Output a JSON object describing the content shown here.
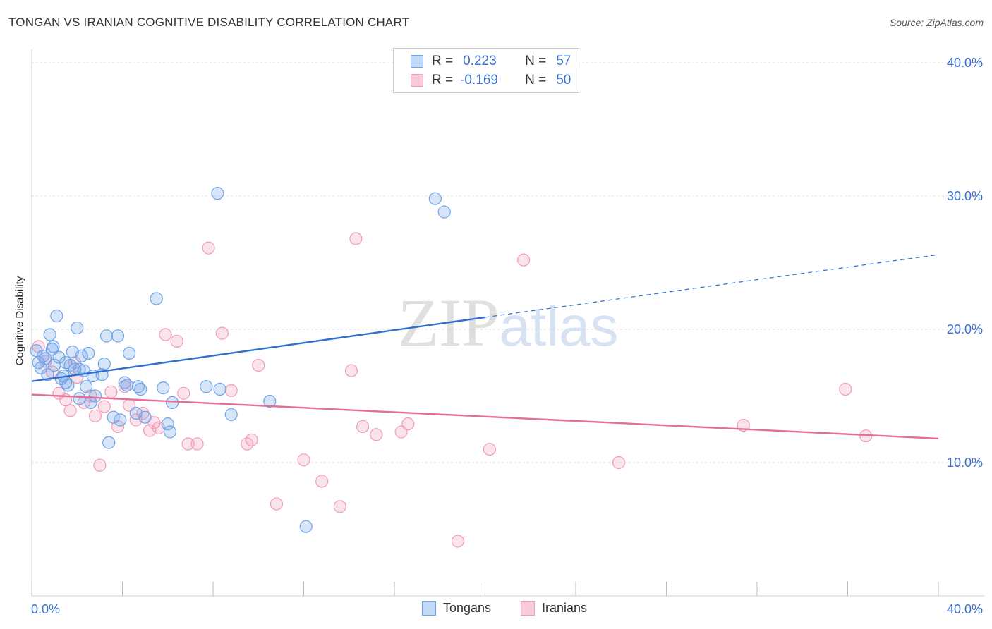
{
  "title": "TONGAN VS IRANIAN COGNITIVE DISABILITY CORRELATION CHART",
  "source": "Source: ZipAtlas.com",
  "watermark": "ZIPatlas",
  "legend_top": {
    "rows": [
      {
        "r_label": "R =",
        "r_value": "0.223",
        "n_label": "N =",
        "n_value": "57",
        "color": "#6fa3e8"
      },
      {
        "r_label": "R =",
        "r_value": "-0.169",
        "n_label": "N =",
        "n_value": "50",
        "color": "#f29bb8"
      }
    ]
  },
  "legend_bottom": [
    {
      "label": "Tongans",
      "color": "#6fa3e8"
    },
    {
      "label": "Iranians",
      "color": "#f29bb8"
    }
  ],
  "chart_data": {
    "type": "scatter",
    "title": "TONGAN VS IRANIAN COGNITIVE DISABILITY CORRELATION CHART",
    "xlabel": "",
    "ylabel": "Cognitive Disability",
    "xlim": [
      0,
      40
    ],
    "ylim": [
      0,
      41
    ],
    "x_tick_labels": [
      "0.0%",
      "40.0%"
    ],
    "y_ticks": [
      10,
      20,
      30,
      40
    ],
    "y_tick_labels": [
      "10.0%",
      "20.0%",
      "30.0%",
      "40.0%"
    ],
    "grid": true,
    "series": [
      {
        "name": "Tongans",
        "color": "#6fa3e8",
        "line_color": "#2f6fd0",
        "trend": {
          "x_start": 0,
          "y_start": 16.1,
          "x_solid_end": 20,
          "y_solid_end": 20.9,
          "x_end": 40,
          "y_end": 25.6
        },
        "points": [
          [
            0.2,
            18.4
          ],
          [
            0.3,
            17.5
          ],
          [
            0.4,
            17.1
          ],
          [
            0.5,
            18.0
          ],
          [
            0.6,
            17.8
          ],
          [
            0.7,
            16.6
          ],
          [
            0.8,
            19.6
          ],
          [
            0.9,
            18.5
          ],
          [
            0.95,
            18.7
          ],
          [
            1.0,
            17.3
          ],
          [
            1.1,
            21.0
          ],
          [
            1.2,
            17.9
          ],
          [
            1.3,
            16.3
          ],
          [
            1.4,
            16.5
          ],
          [
            1.5,
            17.5
          ],
          [
            1.6,
            15.8
          ],
          [
            1.7,
            17.3
          ],
          [
            1.8,
            18.3
          ],
          [
            1.9,
            17.0
          ],
          [
            2.0,
            20.1
          ],
          [
            2.1,
            14.8
          ],
          [
            2.2,
            18.0
          ],
          [
            2.3,
            16.9
          ],
          [
            2.4,
            15.7
          ],
          [
            2.5,
            18.2
          ],
          [
            2.6,
            14.5
          ],
          [
            2.7,
            16.5
          ],
          [
            2.8,
            15.0
          ],
          [
            3.1,
            16.6
          ],
          [
            3.2,
            17.4
          ],
          [
            3.3,
            19.5
          ],
          [
            3.4,
            11.5
          ],
          [
            3.6,
            13.4
          ],
          [
            3.8,
            19.5
          ],
          [
            3.9,
            13.2
          ],
          [
            4.1,
            16.0
          ],
          [
            4.2,
            15.8
          ],
          [
            4.3,
            18.2
          ],
          [
            4.6,
            13.7
          ],
          [
            4.7,
            15.7
          ],
          [
            5.0,
            13.4
          ],
          [
            5.5,
            22.3
          ],
          [
            5.8,
            15.6
          ],
          [
            6.0,
            12.9
          ],
          [
            6.1,
            12.3
          ],
          [
            6.2,
            14.5
          ],
          [
            7.7,
            15.7
          ],
          [
            8.2,
            30.2
          ],
          [
            8.3,
            15.5
          ],
          [
            8.8,
            13.6
          ],
          [
            10.5,
            14.6
          ],
          [
            12.1,
            5.2
          ],
          [
            17.8,
            29.8
          ],
          [
            18.2,
            28.8
          ],
          [
            1.5,
            16.0
          ],
          [
            2.1,
            17.0
          ],
          [
            4.8,
            15.5
          ]
        ]
      },
      {
        "name": "Iranians",
        "color": "#f29bb8",
        "line_color": "#e46e98",
        "trend": {
          "x_start": 0,
          "y_start": 15.1,
          "x_end": 40,
          "y_end": 11.8
        },
        "points": [
          [
            0.3,
            18.7
          ],
          [
            0.6,
            17.6
          ],
          [
            0.9,
            16.8
          ],
          [
            1.2,
            15.2
          ],
          [
            1.5,
            14.7
          ],
          [
            1.7,
            13.9
          ],
          [
            1.9,
            17.5
          ],
          [
            2.0,
            16.4
          ],
          [
            2.3,
            14.5
          ],
          [
            2.6,
            15.0
          ],
          [
            2.8,
            13.5
          ],
          [
            3.0,
            9.8
          ],
          [
            3.2,
            14.2
          ],
          [
            3.5,
            15.3
          ],
          [
            3.8,
            12.7
          ],
          [
            4.1,
            15.7
          ],
          [
            4.3,
            14.3
          ],
          [
            4.6,
            13.2
          ],
          [
            4.9,
            13.7
          ],
          [
            5.2,
            12.4
          ],
          [
            5.4,
            13.0
          ],
          [
            5.6,
            12.6
          ],
          [
            5.9,
            19.6
          ],
          [
            6.4,
            19.1
          ],
          [
            6.7,
            15.2
          ],
          [
            6.9,
            11.4
          ],
          [
            7.3,
            11.4
          ],
          [
            7.8,
            26.1
          ],
          [
            8.4,
            19.7
          ],
          [
            8.8,
            15.4
          ],
          [
            9.5,
            11.4
          ],
          [
            9.7,
            11.7
          ],
          [
            10.0,
            17.3
          ],
          [
            10.8,
            6.9
          ],
          [
            12.0,
            10.2
          ],
          [
            12.8,
            8.6
          ],
          [
            13.6,
            6.7
          ],
          [
            14.1,
            16.9
          ],
          [
            14.3,
            26.8
          ],
          [
            14.6,
            12.7
          ],
          [
            15.2,
            12.1
          ],
          [
            16.3,
            12.3
          ],
          [
            16.6,
            12.9
          ],
          [
            18.8,
            4.1
          ],
          [
            20.2,
            11.0
          ],
          [
            21.7,
            25.2
          ],
          [
            25.9,
            10.0
          ],
          [
            31.4,
            12.8
          ],
          [
            35.9,
            15.5
          ],
          [
            36.8,
            12.0
          ]
        ]
      }
    ]
  }
}
